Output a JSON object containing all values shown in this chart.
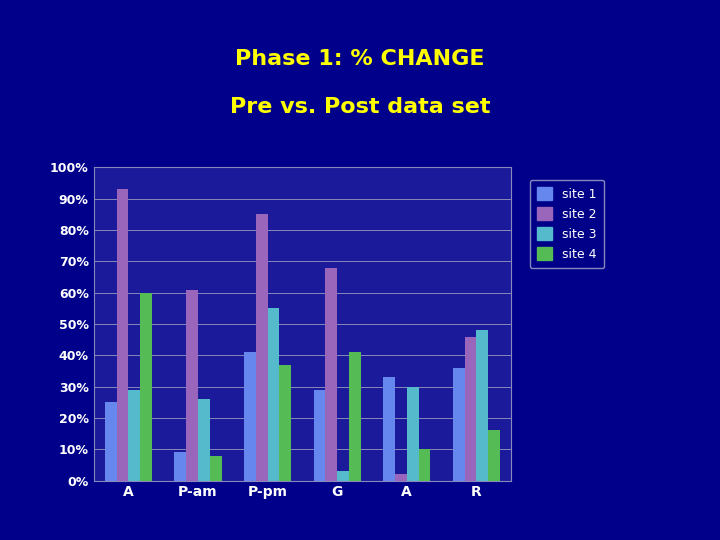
{
  "title_line1": "Phase 1: % CHANGE",
  "title_line2": "Pre vs. Post data set",
  "title_color": "#FFFF00",
  "background_color": "#00008B",
  "chart_bg_color": "#1A1A9A",
  "categories": [
    "A",
    "P-am",
    "P-pm",
    "G",
    "A",
    "R"
  ],
  "site1_values": [
    25,
    9,
    41,
    29,
    33,
    36
  ],
  "site2_values": [
    93,
    61,
    85,
    68,
    2,
    46
  ],
  "site3_values": [
    29,
    26,
    55,
    3,
    30,
    48
  ],
  "site4_values": [
    60,
    8,
    37,
    41,
    10,
    16
  ],
  "site1_color": "#6688EE",
  "site2_color": "#9966BB",
  "site3_color": "#55BBCC",
  "site4_color": "#55BB55",
  "legend_labels": [
    "site 1",
    "site 2",
    "site 3",
    "site 4"
  ],
  "ytick_labels": [
    "0%",
    "10%",
    "20%",
    "30%",
    "40%",
    "50%",
    "60%",
    "70%",
    "80%",
    "90%",
    "100%"
  ],
  "ytick_values": [
    0,
    10,
    20,
    30,
    40,
    50,
    60,
    70,
    80,
    90,
    100
  ],
  "ylim": [
    0,
    100
  ],
  "grid_color": "#8888BB",
  "tick_color": "#FFFFFF",
  "legend_bg": "#000088",
  "legend_edge": "#AAAACC"
}
